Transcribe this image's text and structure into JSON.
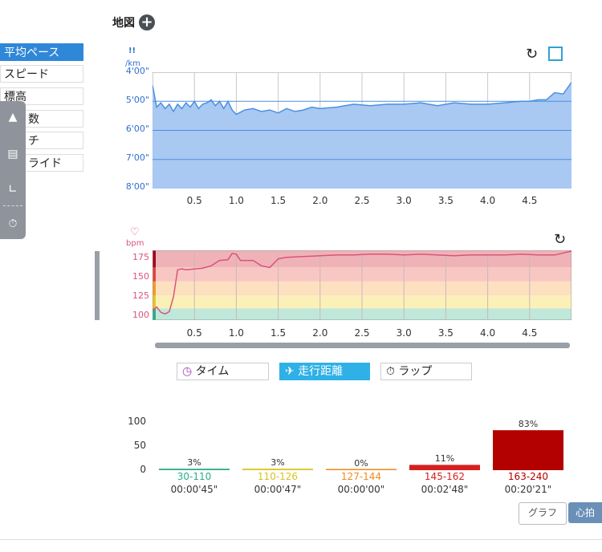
{
  "header": {
    "map_title": "地図"
  },
  "sidebar": {
    "items": [
      {
        "label": "平均ペース",
        "active": true
      },
      {
        "label": "スピード",
        "active": false
      },
      {
        "label": "標高",
        "active": false
      },
      {
        "label": "数",
        "active": false
      },
      {
        "label": "チ",
        "active": false
      },
      {
        "label": "ライド",
        "active": false
      }
    ]
  },
  "toolbar": {
    "icons": [
      "summit-icon",
      "document-icon",
      "chart-icon",
      "stopwatch-icon"
    ]
  },
  "pace_chart": {
    "unit_top": "!!",
    "unit": "/km",
    "y_ticks": [
      "4'00\"",
      "5'00\"",
      "6'00\"",
      "7'00\"",
      "8'00\""
    ],
    "x_ticks": [
      "0.5",
      "1.0",
      "1.5",
      "2.0",
      "2.5",
      "3.0",
      "3.5",
      "4.0",
      "4.5"
    ]
  },
  "hr_chart": {
    "unit": "bpm",
    "y_ticks": [
      "175",
      "150",
      "125",
      "100"
    ],
    "x_ticks": [
      "0.5",
      "1.0",
      "1.5",
      "2.0",
      "2.5",
      "3.0",
      "3.5",
      "4.0",
      "4.5"
    ]
  },
  "x_axis_buttons": [
    {
      "label": "タイム",
      "active": false
    },
    {
      "label": "走行距離",
      "active": true
    },
    {
      "label": "ラップ",
      "active": false
    }
  ],
  "chart_data": [
    {
      "type": "area",
      "ylabel": "/km",
      "y_ticks": [
        "4'00\"",
        "5'00\"",
        "6'00\"",
        "7'00\"",
        "8'00\""
      ],
      "ylim_minutes_per_km": [
        4.0,
        8.0
      ],
      "y_inverted": true,
      "xlim_km": [
        0,
        5.0
      ],
      "color": "#4a90e2",
      "fill": "#a9c8f2",
      "x": [
        0.0,
        0.05,
        0.1,
        0.15,
        0.2,
        0.25,
        0.3,
        0.35,
        0.4,
        0.45,
        0.5,
        0.55,
        0.6,
        0.65,
        0.7,
        0.75,
        0.8,
        0.85,
        0.9,
        0.95,
        1.0,
        1.1,
        1.2,
        1.3,
        1.4,
        1.5,
        1.6,
        1.7,
        1.8,
        1.9,
        2.0,
        2.2,
        2.4,
        2.6,
        2.8,
        3.0,
        3.2,
        3.4,
        3.6,
        3.8,
        4.0,
        4.2,
        4.4,
        4.5,
        4.6,
        4.7,
        4.8,
        4.9,
        5.0
      ],
      "y": [
        4.45,
        5.2,
        5.05,
        5.25,
        5.1,
        5.35,
        5.1,
        5.25,
        5.05,
        5.2,
        5.0,
        5.25,
        5.1,
        5.05,
        4.95,
        5.15,
        5.0,
        5.25,
        5.0,
        5.3,
        5.45,
        5.3,
        5.25,
        5.35,
        5.3,
        5.4,
        5.25,
        5.35,
        5.3,
        5.2,
        5.25,
        5.2,
        5.1,
        5.15,
        5.1,
        5.1,
        5.05,
        5.15,
        5.05,
        5.1,
        5.1,
        5.05,
        5.0,
        5.0,
        4.95,
        4.95,
        4.7,
        4.75,
        4.35
      ]
    },
    {
      "type": "line",
      "ylabel": "bpm",
      "y_ticks": [
        100,
        125,
        150,
        175
      ],
      "ylim": [
        95,
        185
      ],
      "xlim_km": [
        0,
        5.0
      ],
      "color": "#d9547b",
      "zones": [
        {
          "from": 95,
          "to": 110,
          "color": "#bfe8da"
        },
        {
          "from": 110,
          "to": 127,
          "color": "#fbf1b8"
        },
        {
          "from": 127,
          "to": 145,
          "color": "#fde0c0"
        },
        {
          "from": 145,
          "to": 163,
          "color": "#f9c7c3"
        },
        {
          "from": 163,
          "to": 185,
          "color": "#efb3b7"
        }
      ],
      "x": [
        0.0,
        0.05,
        0.1,
        0.15,
        0.2,
        0.25,
        0.3,
        0.35,
        0.4,
        0.5,
        0.6,
        0.7,
        0.8,
        0.9,
        0.95,
        1.0,
        1.05,
        1.1,
        1.2,
        1.3,
        1.4,
        1.5,
        1.6,
        1.8,
        2.0,
        2.2,
        2.4,
        2.6,
        2.8,
        3.0,
        3.2,
        3.4,
        3.6,
        3.8,
        4.0,
        4.2,
        4.4,
        4.6,
        4.8,
        5.0
      ],
      "y": [
        107,
        112,
        105,
        103,
        106,
        125,
        160,
        161,
        160,
        161,
        162,
        165,
        172,
        173,
        181,
        180,
        172,
        172,
        172,
        165,
        163,
        174,
        176,
        177,
        178,
        179,
        179,
        180,
        180,
        179,
        180,
        179,
        178,
        179,
        179,
        179,
        180,
        179,
        179,
        184
      ]
    },
    {
      "type": "bar",
      "categories": [
        "30-110",
        "110-126",
        "127-144",
        "145-162",
        "163-240"
      ],
      "values": [
        3,
        3,
        0,
        11,
        83
      ],
      "labels": [
        "3%",
        "3%",
        "0%",
        "11%",
        "83%"
      ],
      "times": [
        "00:00'45\"",
        "00:00'47\"",
        "00:00'00\"",
        "00:02'48\"",
        "00:20'21\""
      ],
      "colors": [
        "#2aae86",
        "#d8c41d",
        "#f08a1b",
        "#d62020",
        "#b30000"
      ],
      "y_ticks": [
        0,
        50,
        100
      ],
      "ylim": [
        0,
        100
      ]
    }
  ],
  "buttons": {
    "graph": "グラフ",
    "heart_rate": "心拍"
  }
}
